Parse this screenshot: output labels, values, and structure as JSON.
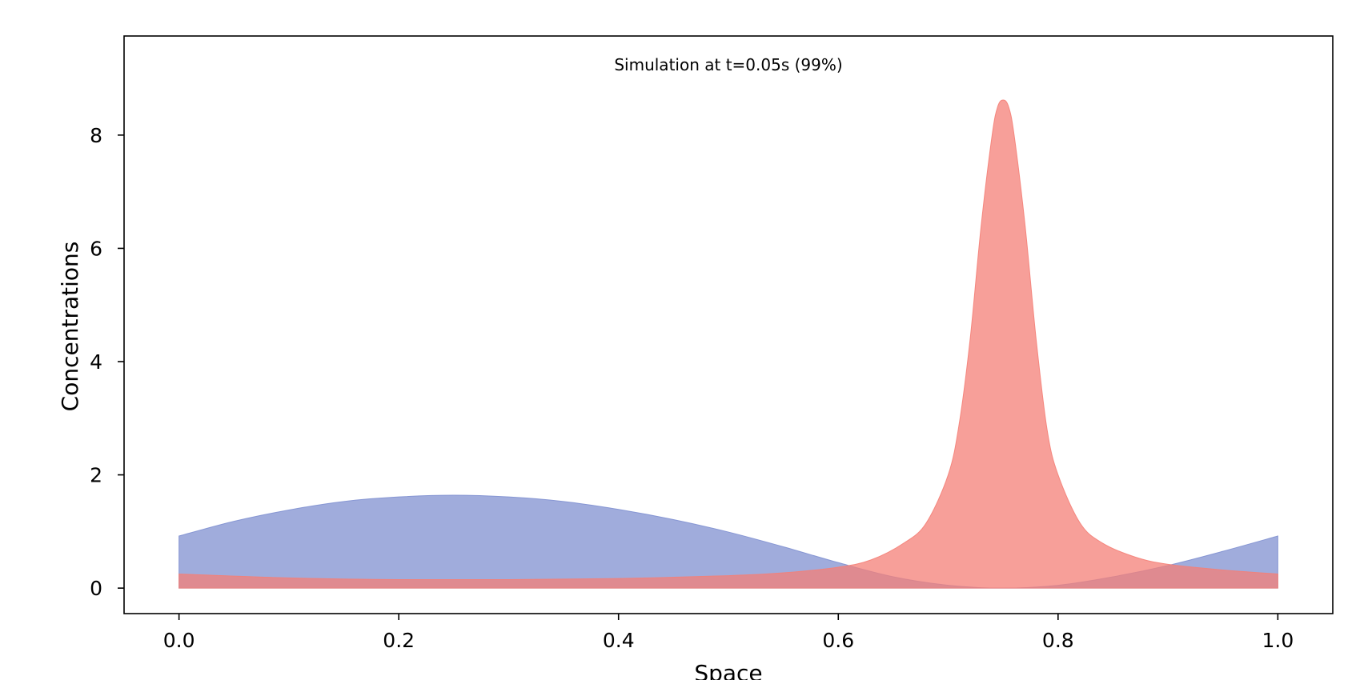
{
  "chart_data": {
    "type": "area",
    "title": "Simulation at t=0.05s (99%)",
    "xlabel": "Space",
    "ylabel": "Concentrations",
    "xlim": [
      -0.05,
      1.05
    ],
    "ylim": [
      -0.45,
      9.75
    ],
    "grid": false,
    "xticks": [
      "0.0",
      "0.2",
      "0.4",
      "0.6",
      "0.8",
      "1.0"
    ],
    "xtick_values": [
      0.0,
      0.2,
      0.4,
      0.6,
      0.8,
      1.0
    ],
    "yticks": [
      "0",
      "2",
      "4",
      "6",
      "8"
    ],
    "ytick_values": [
      0,
      2,
      4,
      6,
      8
    ],
    "series": [
      {
        "color": "#8090d0",
        "x": [
          0.0,
          0.05,
          0.1,
          0.15,
          0.2,
          0.25,
          0.3,
          0.35,
          0.4,
          0.45,
          0.5,
          0.55,
          0.6,
          0.65,
          0.7,
          0.75,
          0.8,
          0.85,
          0.9,
          0.95,
          1.0
        ],
        "y": [
          0.92,
          1.18,
          1.38,
          1.53,
          1.61,
          1.64,
          1.61,
          1.53,
          1.39,
          1.21,
          0.99,
          0.73,
          0.45,
          0.2,
          0.05,
          0.0,
          0.05,
          0.2,
          0.4,
          0.65,
          0.92
        ]
      },
      {
        "color": "#f47f77",
        "x": [
          0.0,
          0.1,
          0.2,
          0.3,
          0.4,
          0.5,
          0.55,
          0.6,
          0.63,
          0.66,
          0.68,
          0.7,
          0.71,
          0.72,
          0.73,
          0.74,
          0.745,
          0.75,
          0.755,
          0.76,
          0.77,
          0.78,
          0.79,
          0.8,
          0.82,
          0.84,
          0.87,
          0.9,
          0.95,
          1.0
        ],
        "y": [
          0.25,
          0.18,
          0.15,
          0.15,
          0.17,
          0.22,
          0.27,
          0.37,
          0.5,
          0.8,
          1.15,
          2.0,
          2.9,
          4.4,
          6.4,
          8.0,
          8.5,
          8.62,
          8.5,
          8.0,
          6.4,
          4.4,
          2.8,
          2.0,
          1.15,
          0.8,
          0.55,
          0.42,
          0.32,
          0.25
        ]
      }
    ]
  }
}
